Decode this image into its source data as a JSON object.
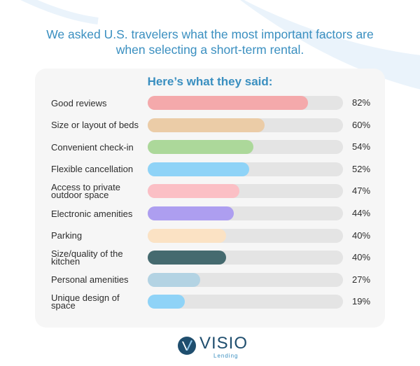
{
  "headline": {
    "line1": "We asked U.S. travelers what the most important factors are",
    "line2": "when selecting a short-term rental."
  },
  "subheading": "Here’s what they said:",
  "logo": {
    "word": "VISIO",
    "sub": "Lending"
  },
  "colors": {
    "accent": "#3a8fc0",
    "track": "#e4e4e4",
    "card": "#f6f6f6",
    "logo_dark": "#1f4e6e"
  },
  "chart_data": {
    "type": "bar",
    "orientation": "horizontal",
    "xlim": [
      0,
      100
    ],
    "categories": [
      "Good reviews",
      "Size or layout of beds",
      "Convenient check-in",
      "Flexible cancellation",
      "Access to private outdoor space",
      "Electronic amenities",
      "Parking",
      "Size/quality of the kitchen",
      "Personal amenities",
      "Unique design of space"
    ],
    "values": [
      82,
      60,
      54,
      52,
      47,
      44,
      40,
      40,
      27,
      19
    ],
    "value_labels": [
      "82%",
      "60%",
      "54%",
      "52%",
      "47%",
      "44%",
      "40%",
      "40%",
      "27%",
      "19%"
    ],
    "bar_colors": [
      "#f4a9ab",
      "#ebcca7",
      "#acd89a",
      "#8fd3f7",
      "#fbbfc5",
      "#ad9ef0",
      "#fbe2c4",
      "#456a6f",
      "#b3d3e3",
      "#8fd3f7"
    ]
  }
}
